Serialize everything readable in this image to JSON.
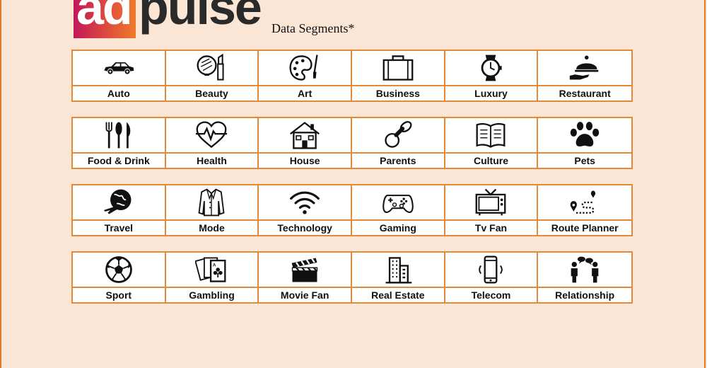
{
  "brand": {
    "box_text": "ad",
    "word": "pulse",
    "subtitle": "Data Segments*"
  },
  "rows": [
    [
      {
        "label": "Auto",
        "icon": "car-icon"
      },
      {
        "label": "Beauty",
        "icon": "beauty-icon"
      },
      {
        "label": "Art",
        "icon": "palette-icon"
      },
      {
        "label": "Business",
        "icon": "briefcase-icon"
      },
      {
        "label": "Luxury",
        "icon": "watch-icon"
      },
      {
        "label": "Restaurant",
        "icon": "cloche-icon"
      }
    ],
    [
      {
        "label": "Food & Drink",
        "icon": "cutlery-icon"
      },
      {
        "label": "Health",
        "icon": "heartbeat-icon"
      },
      {
        "label": "House",
        "icon": "house-icon"
      },
      {
        "label": "Parents",
        "icon": "pacifier-icon"
      },
      {
        "label": "Culture",
        "icon": "book-icon"
      },
      {
        "label": "Pets",
        "icon": "paw-icon"
      }
    ],
    [
      {
        "label": "Travel",
        "icon": "globe-plane-icon"
      },
      {
        "label": "Mode",
        "icon": "coat-icon"
      },
      {
        "label": "Technology",
        "icon": "wifi-icon"
      },
      {
        "label": "Gaming",
        "icon": "gamepad-icon"
      },
      {
        "label": "Tv Fan",
        "icon": "tv-icon"
      },
      {
        "label": "Route Planner",
        "icon": "route-icon"
      }
    ],
    [
      {
        "label": "Sport",
        "icon": "soccer-ball-icon"
      },
      {
        "label": "Gambling",
        "icon": "cards-icon"
      },
      {
        "label": "Movie Fan",
        "icon": "clapperboard-icon"
      },
      {
        "label": "Real Estate",
        "icon": "buildings-icon"
      },
      {
        "label": "Telecom",
        "icon": "phone-icon"
      },
      {
        "label": "Relationship",
        "icon": "people-talk-icon"
      }
    ]
  ]
}
